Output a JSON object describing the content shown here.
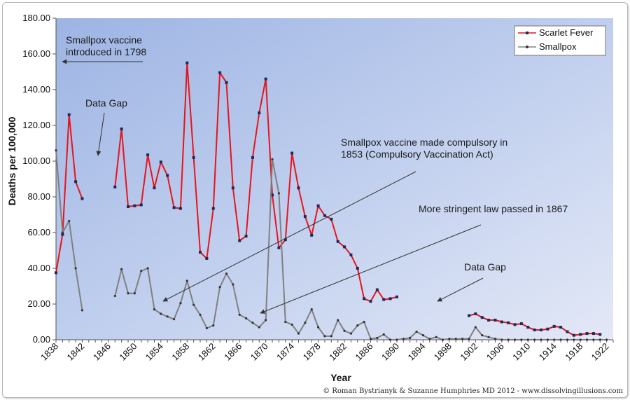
{
  "chart_data": {
    "type": "line",
    "xlabel": "Year",
    "ylabel": "Deaths per 100,000",
    "xlim": [
      1838,
      1923
    ],
    "ylim": [
      0,
      180
    ],
    "y_ticks": [
      "0.00",
      "20.00",
      "40.00",
      "60.00",
      "80.00",
      "100.00",
      "120.00",
      "140.00",
      "160.00",
      "180.00"
    ],
    "x_ticks": [
      "1838",
      "1842",
      "1846",
      "1850",
      "1854",
      "1858",
      "1862",
      "1866",
      "1870",
      "1874",
      "1878",
      "1882",
      "1886",
      "1890",
      "1894",
      "1898",
      "1902",
      "1906",
      "1910",
      "1914",
      "1918",
      "1922"
    ],
    "legend_position": "top-right",
    "series": [
      {
        "name": "Scarlet Fever",
        "color": "#e8141b",
        "marker_color": "#1a2b5c",
        "x": [
          1838,
          1839,
          1840,
          1841,
          1842,
          1847,
          1848,
          1849,
          1850,
          1851,
          1852,
          1853,
          1854,
          1855,
          1856,
          1857,
          1858,
          1859,
          1860,
          1861,
          1862,
          1863,
          1864,
          1865,
          1866,
          1867,
          1868,
          1869,
          1870,
          1871,
          1872,
          1873,
          1874,
          1875,
          1876,
          1877,
          1878,
          1879,
          1880,
          1881,
          1882,
          1883,
          1884,
          1885,
          1886,
          1887,
          1888,
          1889,
          1890,
          1901,
          1902,
          1903,
          1904,
          1905,
          1906,
          1907,
          1908,
          1909,
          1910,
          1911,
          1912,
          1913,
          1914,
          1915,
          1916,
          1917,
          1918,
          1919,
          1920,
          1921
        ],
        "y": [
          37.5,
          59,
          126,
          88.5,
          79,
          85.5,
          118,
          74.5,
          75,
          75.5,
          103.5,
          85,
          99.5,
          92,
          74,
          73.5,
          155,
          102,
          49,
          45.5,
          73.5,
          149.5,
          144,
          85,
          55.5,
          58,
          102,
          127,
          146,
          81,
          51.5,
          56,
          104.5,
          85,
          69,
          58.5,
          75,
          69.5,
          67.5,
          55,
          52,
          47.5,
          40,
          23,
          21.5,
          28,
          22.5,
          23,
          24,
          13.5,
          14.5,
          12.5,
          11,
          11,
          10,
          9.5,
          8.5,
          9,
          7,
          5.5,
          5.5,
          6,
          7.5,
          7,
          4.5,
          2.5,
          3,
          3.5,
          3.5,
          3
        ]
      },
      {
        "name": "Smallpox",
        "color": "#808080",
        "marker_color": "#333333",
        "x": [
          1838,
          1839,
          1840,
          1841,
          1842,
          1847,
          1848,
          1849,
          1850,
          1851,
          1852,
          1853,
          1854,
          1855,
          1856,
          1857,
          1858,
          1859,
          1860,
          1861,
          1862,
          1863,
          1864,
          1865,
          1866,
          1867,
          1868,
          1869,
          1870,
          1871,
          1872,
          1873,
          1874,
          1875,
          1876,
          1877,
          1878,
          1879,
          1880,
          1881,
          1882,
          1883,
          1884,
          1885,
          1886,
          1887,
          1888,
          1889,
          1890,
          1891,
          1892,
          1893,
          1894,
          1895,
          1896,
          1897,
          1898,
          1899,
          1900,
          1901,
          1902,
          1903,
          1904,
          1905,
          1906,
          1907,
          1908,
          1909,
          1910,
          1911,
          1912,
          1913,
          1914,
          1915,
          1916,
          1917,
          1918,
          1919,
          1920,
          1921,
          1922
        ],
        "y": [
          106,
          60,
          66.5,
          40,
          16.5,
          24.5,
          39.5,
          26,
          26,
          38.5,
          40,
          17,
          14.5,
          13,
          11.5,
          20.5,
          33,
          19.5,
          14,
          6.5,
          8,
          29.5,
          37,
          31,
          14,
          12,
          9.5,
          7,
          11,
          101,
          82,
          10,
          8.5,
          3.5,
          9.5,
          17,
          7,
          2,
          2,
          11,
          5,
          3.5,
          8,
          10,
          0.5,
          1,
          3,
          0,
          0,
          0.5,
          1,
          4.5,
          2.5,
          0.5,
          1.5,
          0,
          0.5,
          0.5,
          0.5,
          0.5,
          7,
          2.5,
          1.5,
          0.5,
          0,
          0,
          0,
          0,
          0,
          0,
          0,
          0,
          0,
          0,
          0,
          0,
          0,
          0,
          0,
          0,
          0
        ]
      }
    ],
    "annotations": [
      {
        "lines": [
          "Smallpox vaccine",
          "introduced in 1798"
        ]
      },
      {
        "lines": [
          "Data Gap"
        ]
      },
      {
        "lines": [
          "Smallpox vaccine made compulsory in",
          "1853 (Compulsory Vaccination Act)"
        ]
      },
      {
        "lines": [
          "More stringent law passed in 1867"
        ]
      },
      {
        "lines": [
          "Data Gap"
        ]
      }
    ],
    "credit": "© Roman Bystrianyk & Suzanne Humphries MD 2012 - www.dissolvingillusions.com"
  }
}
